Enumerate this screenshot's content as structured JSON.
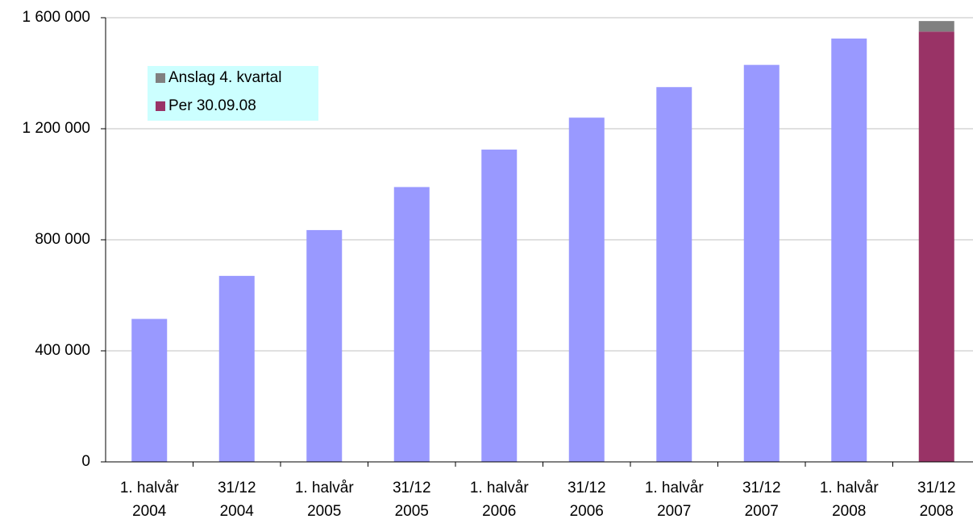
{
  "chart_data": {
    "type": "bar",
    "stacked": true,
    "categories": [
      [
        "1. halvår",
        "2004"
      ],
      [
        "31/12",
        "2004"
      ],
      [
        "1. halvår",
        "2005"
      ],
      [
        "31/12",
        "2005"
      ],
      [
        "1. halvår",
        "2006"
      ],
      [
        "31/12",
        "2006"
      ],
      [
        "1. halvår",
        "2007"
      ],
      [
        "31/12",
        "2007"
      ],
      [
        "1. halvår",
        "2008"
      ],
      [
        "31/12",
        "2008"
      ]
    ],
    "series": [
      {
        "color": "#9999ff",
        "values": [
          515000,
          670000,
          835000,
          990000,
          1125000,
          1240000,
          1350000,
          1430000,
          1525000,
          null
        ]
      },
      {
        "name": "Per 30.09.08",
        "color": "#993366",
        "values": [
          null,
          null,
          null,
          null,
          null,
          null,
          null,
          null,
          null,
          1550000
        ]
      },
      {
        "name": "Anslag 4. kvartal",
        "color": "#808080",
        "values": [
          null,
          null,
          null,
          null,
          null,
          null,
          null,
          null,
          null,
          38000
        ]
      }
    ],
    "ylim": [
      0,
      1600000
    ],
    "yticks": [
      0,
      {
        "value": 400000,
        "label": "400 000"
      },
      {
        "value": 800000,
        "label": "800 000"
      },
      {
        "value": 1200000,
        "label": "1 200 000"
      },
      {
        "value": 1600000,
        "label": "1 600 000"
      }
    ],
    "grid": true,
    "legend": "upper left"
  }
}
